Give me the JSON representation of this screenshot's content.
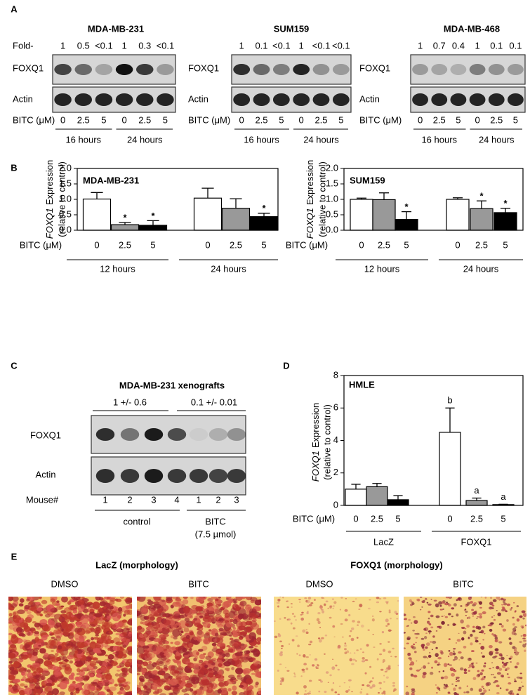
{
  "panel_labels": [
    "A",
    "B",
    "C",
    "D",
    "E"
  ],
  "panel_a": {
    "blots": [
      {
        "title": "MDA-MB-231",
        "fold_label": "Fold-",
        "fold": [
          "1",
          "0.5",
          "<0.1",
          "1",
          "0.3",
          "<0.1"
        ],
        "rows": [
          "FOXQ1",
          "Actin"
        ],
        "treatment_label": "BITC (μM)",
        "doses": [
          "0",
          "2.5",
          "5"
        ],
        "times": [
          "16 hours",
          "24 hours"
        ]
      },
      {
        "title": "SUM159",
        "fold": [
          "1",
          "0.1",
          "<0.1",
          "1",
          "<0.1",
          "<0.1"
        ],
        "rows": [
          "FOXQ1",
          "Actin"
        ],
        "treatment_label": "BITC (μM)",
        "doses": [
          "0",
          "2.5",
          "5"
        ],
        "times": [
          "16 hours",
          "24 hours"
        ]
      },
      {
        "title": "MDA-MB-468",
        "fold": [
          "1",
          "0.7",
          "0.4",
          "1",
          "0.1",
          "0.1"
        ],
        "rows": [
          "FOXQ1",
          "Actin"
        ],
        "treatment_label": "BITC (μM)",
        "doses": [
          "0",
          "2.5",
          "5"
        ],
        "times": [
          "16 hours",
          "24 hours"
        ]
      }
    ]
  },
  "chart_data": [
    {
      "type": "bar",
      "title": "MDA-MB-231",
      "y_label": {
        "gene": "FOXQ1",
        "text": "Expression",
        "line2": "(relative to control)"
      },
      "x_label": "BITC (μM)",
      "categories": [
        "12 hours",
        "24 hours"
      ],
      "series": [
        {
          "name": "0",
          "color": "#ffffff",
          "values": [
            1.01,
            1.04
          ],
          "errors": [
            0.21,
            0.32
          ],
          "annotations": [
            null,
            null
          ]
        },
        {
          "name": "2.5",
          "color": "#999999",
          "values": [
            0.18,
            0.71
          ],
          "errors": [
            0.07,
            0.31
          ],
          "annotations": [
            "*",
            null
          ]
        },
        {
          "name": "5",
          "color": "#000000",
          "values": [
            0.16,
            0.44
          ],
          "errors": [
            0.15,
            0.11
          ],
          "annotations": [
            "*",
            "*"
          ]
        }
      ],
      "ylim": [
        0,
        2
      ],
      "yticks": [
        {
          "value": 0,
          "label": "0.0"
        },
        {
          "value": 0.5,
          "label": "0.5"
        },
        {
          "value": 1,
          "label": "1.0"
        },
        {
          "value": 1.5,
          "label": "1.5"
        },
        {
          "value": 2,
          "label": "2.0"
        }
      ]
    },
    {
      "type": "bar",
      "title": "SUM159",
      "y_label": {
        "gene": "FOXQ1",
        "text": "Expression",
        "line2": "(relative to control)"
      },
      "x_label": "BITC (μM)",
      "categories": [
        "12 hours",
        "24 hours"
      ],
      "series": [
        {
          "name": "0",
          "color": "#ffffff",
          "values": [
            1.0,
            1.0
          ],
          "errors": [
            0.04,
            0.05
          ],
          "annotations": [
            null,
            null
          ]
        },
        {
          "name": "2.5",
          "color": "#999999",
          "values": [
            0.99,
            0.7
          ],
          "errors": [
            0.22,
            0.25
          ],
          "annotations": [
            null,
            "*"
          ]
        },
        {
          "name": "5",
          "color": "#000000",
          "values": [
            0.35,
            0.57
          ],
          "errors": [
            0.25,
            0.14
          ],
          "annotations": [
            "*",
            "*"
          ]
        }
      ],
      "ylim": [
        0,
        2
      ],
      "yticks": [
        {
          "value": 0,
          "label": "0.0"
        },
        {
          "value": 0.5,
          "label": "0.5"
        },
        {
          "value": 1,
          "label": "1.0"
        },
        {
          "value": 1.5,
          "label": "1.5"
        },
        {
          "value": 2,
          "label": "2.0"
        }
      ]
    },
    {
      "type": "bar",
      "title": "HMLE",
      "y_label": {
        "gene": "FOXQ1",
        "text": "Expression",
        "line2": "(relative to control)"
      },
      "x_label": "BITC (μM)",
      "categories": [
        "LacZ",
        "FOXQ1"
      ],
      "series": [
        {
          "name": "0",
          "color": "#ffffff",
          "values": [
            1.0,
            4.5
          ],
          "errors": [
            0.3,
            1.5
          ],
          "annotations": [
            null,
            "b"
          ]
        },
        {
          "name": "2.5",
          "color": "#999999",
          "values": [
            1.15,
            0.3
          ],
          "errors": [
            0.2,
            0.15
          ],
          "annotations": [
            null,
            "a"
          ]
        },
        {
          "name": "5",
          "color": "#000000",
          "values": [
            0.35,
            0.05
          ],
          "errors": [
            0.25,
            0.02
          ],
          "annotations": [
            null,
            "a"
          ]
        }
      ],
      "ylim": [
        0,
        8
      ],
      "yticks": [
        0,
        2,
        4,
        6,
        8
      ]
    }
  ],
  "panel_c": {
    "title": "MDA-MB-231 xenografts",
    "group_values": [
      "1 +/- 0.6",
      "0.1 +/- 0.01"
    ],
    "rows": [
      "FOXQ1",
      "Actin"
    ],
    "mouse_label": "Mouse#",
    "mice": [
      "1",
      "2",
      "3",
      "4",
      "1",
      "2",
      "3"
    ],
    "groups": [
      "control",
      "BITC"
    ],
    "dose_note": "(7.5 µmol)"
  },
  "panel_e": {
    "groups": [
      "LacZ (morphology)",
      "FOXQ1 (morphology)"
    ],
    "images": [
      "DMSO",
      "BITC",
      "DMSO",
      "BITC"
    ]
  }
}
